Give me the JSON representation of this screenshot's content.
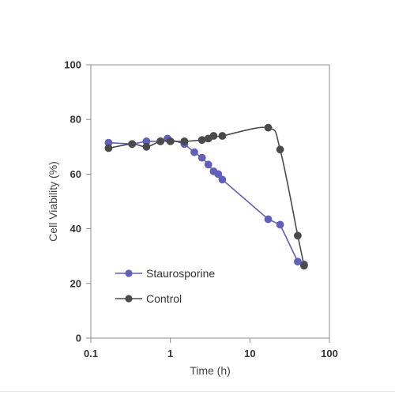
{
  "chart_data": {
    "type": "line",
    "xlabel": "Time (h)",
    "ylabel": "Cell Viability (%)",
    "xscale": "log",
    "xlim": [
      0.1,
      100
    ],
    "ylim": [
      0,
      100
    ],
    "x_tick_labels": [
      "0.1",
      "1",
      "10",
      "100"
    ],
    "y_tick_labels": [
      "0",
      "20",
      "40",
      "60",
      "80",
      "100"
    ],
    "legend_position": "bottom-left",
    "grid": false,
    "series": [
      {
        "name": "Staurosporine",
        "color": "#6060b8",
        "points": [
          [
            0.167,
            71.5
          ],
          [
            0.33,
            71
          ],
          [
            0.5,
            72
          ],
          [
            0.75,
            72
          ],
          [
            0.92,
            73
          ],
          [
            1.5,
            71
          ],
          [
            2.0,
            68
          ],
          [
            2.5,
            66
          ],
          [
            3.0,
            63.5
          ],
          [
            3.5,
            61
          ],
          [
            4.0,
            60
          ],
          [
            4.5,
            58
          ],
          [
            17,
            43.5
          ],
          [
            24,
            41.5
          ],
          [
            40,
            28
          ],
          [
            48,
            27
          ]
        ]
      },
      {
        "name": "Control",
        "color": "#4a4a4a",
        "points": [
          [
            0.167,
            69.5
          ],
          [
            0.33,
            71
          ],
          [
            0.5,
            70
          ],
          [
            0.75,
            72
          ],
          [
            1.0,
            72
          ],
          [
            1.5,
            72
          ],
          [
            2.5,
            72.5
          ],
          [
            3.0,
            73
          ],
          [
            3.5,
            74
          ],
          [
            4.5,
            74
          ],
          [
            17,
            77
          ],
          [
            24,
            69
          ],
          [
            40,
            37.5
          ],
          [
            48,
            26.5
          ]
        ]
      }
    ]
  }
}
